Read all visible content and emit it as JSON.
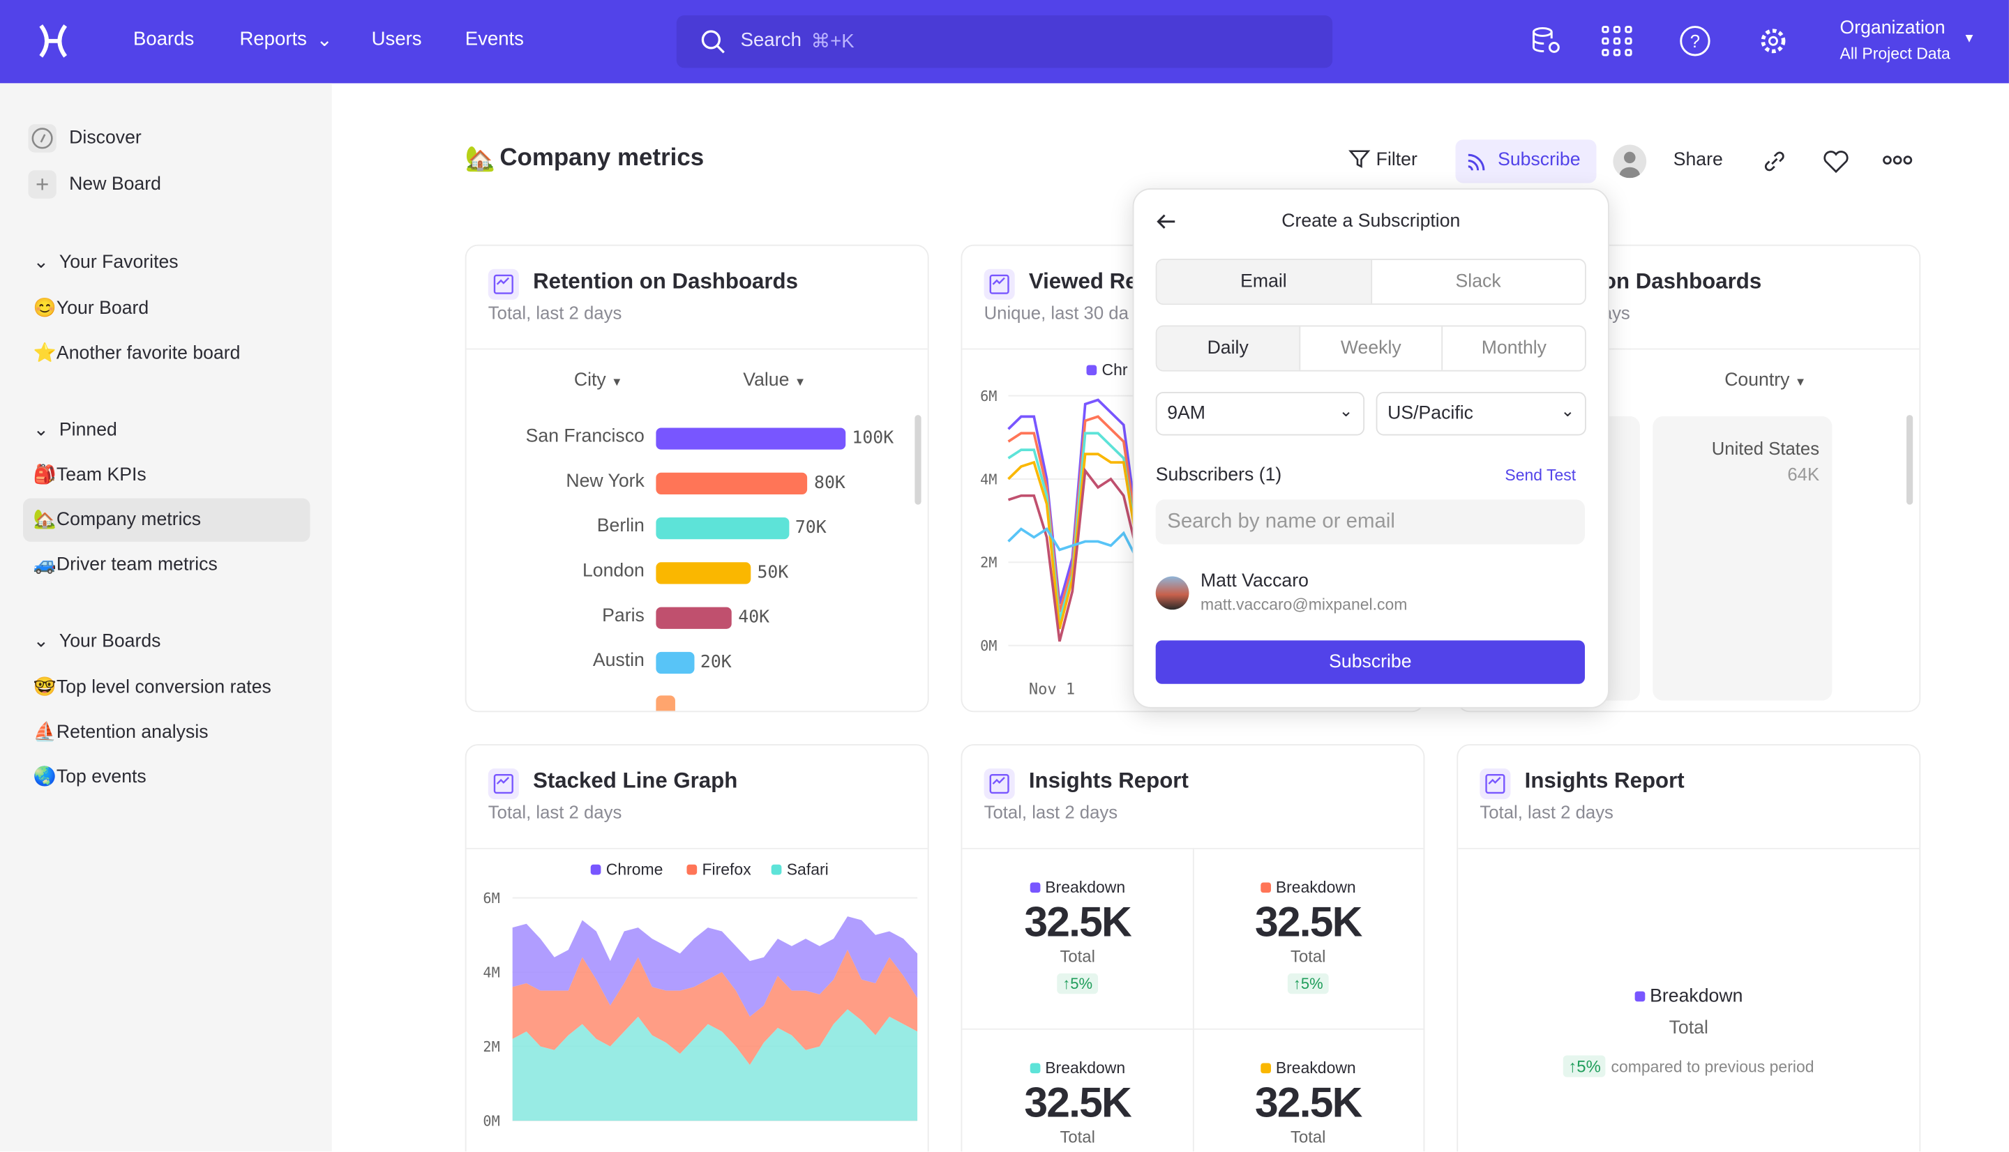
{
  "topbar": {
    "nav": [
      "Boards",
      "Reports",
      "Users",
      "Events"
    ],
    "search_placeholder": "Search",
    "search_shortcut": "⌘+K",
    "org_title": "Organization",
    "org_sub": "All Project Data",
    "icons": [
      "data-settings-icon",
      "apps-grid-icon",
      "help-icon",
      "settings-icon"
    ]
  },
  "colors": {
    "brand": "#5243e9",
    "purple": "#7856ff",
    "orange": "#ff7557",
    "teal": "#5de3d8",
    "yellow": "#fab700",
    "red": "#c0506e",
    "blue": "#58c4f7",
    "up": "#1f9d5a"
  },
  "sidebar": {
    "discover": "Discover",
    "new_board": "New Board",
    "favorites_label": "Your Favorites",
    "favorites": [
      {
        "emoji": "😊",
        "label": "Your Board"
      },
      {
        "emoji": "⭐",
        "label": "Another favorite board"
      }
    ],
    "pinned_label": "Pinned",
    "pinned": [
      {
        "emoji": "🎒",
        "label": "Team KPIs"
      },
      {
        "emoji": "🏡",
        "label": "Company metrics"
      },
      {
        "emoji": "🚙",
        "label": "Driver team metrics"
      }
    ],
    "boards_label": "Your Boards",
    "boards": [
      {
        "emoji": "🤓",
        "label": "Top level conversion rates"
      },
      {
        "emoji": "⛵",
        "label": "Retention analysis"
      },
      {
        "emoji": "🌏",
        "label": "Top events"
      }
    ]
  },
  "page": {
    "emoji": "🏡",
    "title": "Company metrics",
    "filter": "Filter",
    "subscribe": "Subscribe",
    "share": "Share"
  },
  "cards": {
    "retention": {
      "title": "Retention on Dashboards",
      "sub": "Total, last 2 days",
      "col1": "City",
      "col2": "Value",
      "rows": [
        {
          "city": "San Francisco",
          "value": 100,
          "label": "100K"
        },
        {
          "city": "New York",
          "value": 80,
          "label": "80K"
        },
        {
          "city": "Berlin",
          "value": 70,
          "label": "70K"
        },
        {
          "city": "London",
          "value": 50,
          "label": "50K"
        },
        {
          "city": "Paris",
          "value": 40,
          "label": "40K"
        },
        {
          "city": "Austin",
          "value": 20,
          "label": "20K"
        }
      ]
    },
    "viewed": {
      "title": "Viewed Re",
      "sub": "Unique, last 30 da",
      "legend": "Chr",
      "yticks": [
        "6M",
        "4M",
        "2M",
        "0M"
      ],
      "xtick": "Nov 1",
      "series": [
        [
          5.2,
          5.5,
          5.5,
          4.0,
          1.0,
          2.1,
          5.8,
          5.9,
          5.6,
          5.3,
          3.0
        ],
        [
          4.9,
          5.1,
          5.1,
          3.8,
          0.8,
          1.9,
          5.4,
          5.5,
          5.2,
          4.9,
          2.8
        ],
        [
          4.5,
          4.7,
          4.7,
          3.6,
          0.6,
          1.7,
          5.1,
          5.1,
          4.8,
          4.5,
          2.6
        ],
        [
          4.0,
          4.3,
          4.4,
          3.4,
          0.4,
          1.6,
          4.6,
          4.6,
          4.4,
          4.4,
          2.5
        ],
        [
          3.5,
          3.6,
          3.6,
          2.6,
          0.1,
          1.3,
          4.2,
          3.8,
          4.0,
          3.6,
          2.3
        ],
        [
          2.5,
          2.8,
          2.6,
          2.8,
          2.3,
          2.4,
          2.5,
          2.5,
          2.4,
          2.7,
          2.1
        ]
      ]
    },
    "country": {
      "title": "Retention on Dashboards",
      "sub": "Total, last 2 days",
      "col": "Country",
      "cells": [
        {
          "label": "United States",
          "value": "64K"
        }
      ]
    },
    "stacked": {
      "title": "Stacked Line Graph",
      "sub": "Total, last 2 days",
      "legend": [
        "Chrome",
        "Firefox",
        "Safari"
      ],
      "yticks": [
        "6M",
        "4M",
        "2M",
        "0M"
      ],
      "safari": [
        2.2,
        2.4,
        2.0,
        1.9,
        2.3,
        2.6,
        2.2,
        2.0,
        2.4,
        2.8,
        2.3,
        2.1,
        1.8,
        2.2,
        2.6,
        2.4,
        2.0,
        1.5,
        2.1,
        2.5,
        2.3,
        1.9,
        2.0,
        2.6,
        3.0,
        2.7,
        2.3,
        2.8,
        2.6,
        2.4
      ],
      "firefox": [
        1.4,
        1.3,
        1.5,
        1.6,
        1.2,
        1.8,
        1.6,
        1.1,
        1.3,
        1.6,
        1.3,
        1.4,
        1.7,
        1.4,
        1.2,
        1.6,
        1.5,
        1.3,
        1.0,
        1.4,
        1.2,
        1.6,
        1.4,
        1.2,
        1.6,
        1.1,
        1.4,
        1.6,
        1.3,
        0.9
      ],
      "chrome": [
        1.6,
        1.6,
        1.4,
        0.9,
        1.1,
        1.0,
        1.3,
        1.2,
        1.4,
        0.8,
        1.3,
        1.2,
        1.0,
        1.3,
        1.4,
        1.1,
        1.2,
        1.5,
        1.3,
        1.0,
        1.2,
        1.4,
        1.3,
        1.1,
        0.9,
        1.6,
        1.3,
        0.7,
        1.0,
        1.2
      ]
    },
    "insights1": {
      "title": "Insights Report",
      "sub": "Total, last 2 days",
      "kpis": [
        {
          "label": "Breakdown",
          "value": "32.5K",
          "total": "Total",
          "delta": "↑5%",
          "color": "#7856ff"
        },
        {
          "label": "Breakdown",
          "value": "32.5K",
          "total": "Total",
          "delta": "↑5%",
          "color": "#ff7557"
        },
        {
          "label": "Breakdown",
          "value": "32.5K",
          "total": "Total",
          "color": "#5de3d8"
        },
        {
          "label": "Breakdown",
          "value": "32.5K",
          "total": "Total",
          "color": "#fab700"
        }
      ]
    },
    "insights2": {
      "title": "Insights Report",
      "sub": "Total, last 2 days",
      "label": "Breakdown",
      "total": "Total",
      "delta": "↑5%",
      "compare": "compared to previous period"
    }
  },
  "popover": {
    "title": "Create a Subscription",
    "channels": [
      "Email",
      "Slack"
    ],
    "frequencies": [
      "Daily",
      "Weekly",
      "Monthly"
    ],
    "time": "9AM",
    "timezone": "US/Pacific",
    "subscribers_label": "Subscribers (1)",
    "send_test": "Send Test",
    "search_placeholder": "Search by name or email",
    "subscriber": {
      "name": "Matt Vaccaro",
      "email": "matt.vaccaro@mixpanel.com"
    },
    "submit": "Subscribe"
  }
}
